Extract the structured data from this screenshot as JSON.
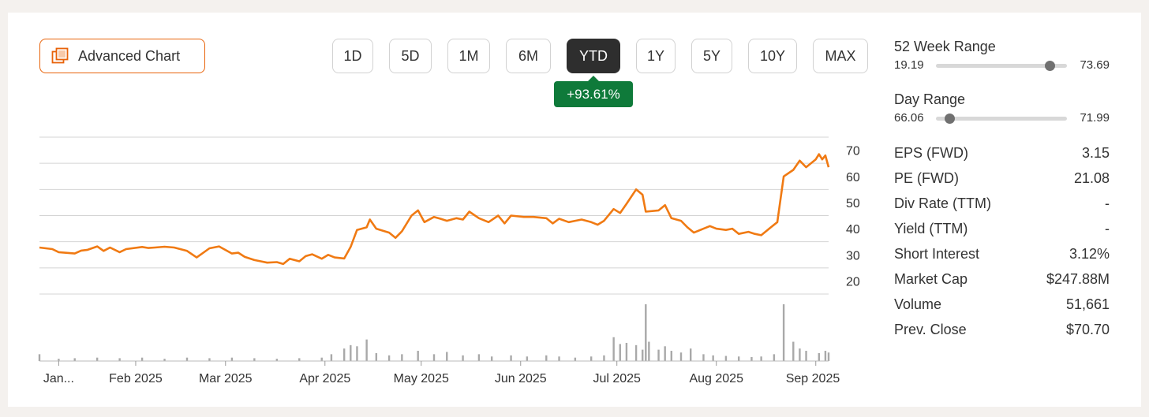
{
  "toolbar": {
    "advanced_chart_label": "Advanced Chart",
    "ranges": [
      "1D",
      "5D",
      "1M",
      "6M",
      "YTD",
      "1Y",
      "5Y",
      "10Y",
      "MAX"
    ],
    "active_range": "YTD",
    "change_label": "+93.61%"
  },
  "colors": {
    "accent": "#e8630a",
    "price_line": "#f07a13",
    "positive": "#0f7a3a",
    "volume_bar": "#a9a9a9",
    "active_button": "#2e2e2e"
  },
  "ranges_panel": {
    "week52": {
      "title": "52 Week Range",
      "low": "19.19",
      "high": "73.69",
      "position": 0.87
    },
    "day": {
      "title": "Day Range",
      "low": "66.06",
      "high": "71.99",
      "position": 0.1
    }
  },
  "stats": [
    {
      "label": "EPS (FWD)",
      "value": "3.15"
    },
    {
      "label": "PE (FWD)",
      "value": "21.08"
    },
    {
      "label": "Div Rate (TTM)",
      "value": "-"
    },
    {
      "label": "Yield (TTM)",
      "value": "-"
    },
    {
      "label": "Short Interest",
      "value": "3.12%"
    },
    {
      "label": "Market Cap",
      "value": "$247.88M"
    },
    {
      "label": "Volume",
      "value": "51,661"
    },
    {
      "label": "Prev. Close",
      "value": "$70.70"
    }
  ],
  "chart_data": {
    "type": "line",
    "title": "",
    "ylim": [
      15,
      75
    ],
    "yticks": [
      20,
      30,
      40,
      50,
      60,
      70
    ],
    "grid": true,
    "x_range": [
      "2025-01-02",
      "2025-09-05"
    ],
    "xticks": [
      {
        "label": "Jan...",
        "date": "2025-01-08"
      },
      {
        "label": "Feb 2025",
        "date": "2025-02-01"
      },
      {
        "label": "Mar 2025",
        "date": "2025-03-01"
      },
      {
        "label": "Apr 2025",
        "date": "2025-04-01"
      },
      {
        "label": "May 2025",
        "date": "2025-05-01"
      },
      {
        "label": "Jun 2025",
        "date": "2025-06-01"
      },
      {
        "label": "Jul 2025",
        "date": "2025-07-01"
      },
      {
        "label": "Aug 2025",
        "date": "2025-08-01"
      },
      {
        "label": "Sep 2025",
        "date": "2025-09-01"
      }
    ],
    "series": [
      {
        "values": [
          [
            "2025-01-02",
            32.8
          ],
          [
            "2025-01-06",
            32.2
          ],
          [
            "2025-01-08",
            31.0
          ],
          [
            "2025-01-13",
            30.5
          ],
          [
            "2025-01-15",
            31.6
          ],
          [
            "2025-01-17",
            31.9
          ],
          [
            "2025-01-20",
            33.2
          ],
          [
            "2025-01-22",
            31.5
          ],
          [
            "2025-01-24",
            32.8
          ],
          [
            "2025-01-27",
            31.0
          ],
          [
            "2025-01-29",
            32.2
          ],
          [
            "2025-02-03",
            33.0
          ],
          [
            "2025-02-05",
            32.6
          ],
          [
            "2025-02-07",
            32.8
          ],
          [
            "2025-02-10",
            33.1
          ],
          [
            "2025-02-13",
            32.8
          ],
          [
            "2025-02-17",
            31.5
          ],
          [
            "2025-02-20",
            29.0
          ],
          [
            "2025-02-24",
            32.5
          ],
          [
            "2025-02-27",
            33.2
          ],
          [
            "2025-03-03",
            30.5
          ],
          [
            "2025-03-05",
            30.8
          ],
          [
            "2025-03-07",
            29.2
          ],
          [
            "2025-03-10",
            28.0
          ],
          [
            "2025-03-12",
            27.5
          ],
          [
            "2025-03-14",
            27.0
          ],
          [
            "2025-03-17",
            27.2
          ],
          [
            "2025-03-19",
            26.5
          ],
          [
            "2025-03-21",
            28.5
          ],
          [
            "2025-03-24",
            27.5
          ],
          [
            "2025-03-26",
            29.5
          ],
          [
            "2025-03-28",
            30.2
          ],
          [
            "2025-03-31",
            28.5
          ],
          [
            "2025-04-02",
            30.0
          ],
          [
            "2025-04-04",
            29.0
          ],
          [
            "2025-04-07",
            28.6
          ],
          [
            "2025-04-09",
            33.0
          ],
          [
            "2025-04-11",
            39.5
          ],
          [
            "2025-04-14",
            40.5
          ],
          [
            "2025-04-15",
            43.5
          ],
          [
            "2025-04-17",
            40.0
          ],
          [
            "2025-04-21",
            38.5
          ],
          [
            "2025-04-23",
            36.5
          ],
          [
            "2025-04-25",
            39.0
          ],
          [
            "2025-04-28",
            45.0
          ],
          [
            "2025-04-30",
            47.0
          ],
          [
            "2025-05-02",
            42.5
          ],
          [
            "2025-05-05",
            44.5
          ],
          [
            "2025-05-07",
            43.8
          ],
          [
            "2025-05-09",
            43.0
          ],
          [
            "2025-05-12",
            44.0
          ],
          [
            "2025-05-14",
            43.5
          ],
          [
            "2025-05-16",
            46.5
          ],
          [
            "2025-05-19",
            44.0
          ],
          [
            "2025-05-22",
            42.5
          ],
          [
            "2025-05-25",
            45.0
          ],
          [
            "2025-05-27",
            42.0
          ],
          [
            "2025-05-29",
            45.0
          ],
          [
            "2025-06-02",
            44.5
          ],
          [
            "2025-06-05",
            44.5
          ],
          [
            "2025-06-09",
            44.0
          ],
          [
            "2025-06-11",
            42.0
          ],
          [
            "2025-06-13",
            43.8
          ],
          [
            "2025-06-16",
            42.5
          ],
          [
            "2025-06-18",
            43.0
          ],
          [
            "2025-06-20",
            43.5
          ],
          [
            "2025-06-23",
            42.5
          ],
          [
            "2025-06-25",
            41.5
          ],
          [
            "2025-06-27",
            43.0
          ],
          [
            "2025-06-30",
            47.5
          ],
          [
            "2025-07-02",
            46.0
          ],
          [
            "2025-07-04",
            49.5
          ],
          [
            "2025-07-07",
            55.0
          ],
          [
            "2025-07-09",
            53.0
          ],
          [
            "2025-07-10",
            46.5
          ],
          [
            "2025-07-14",
            47.0
          ],
          [
            "2025-07-16",
            49.0
          ],
          [
            "2025-07-18",
            44.0
          ],
          [
            "2025-07-21",
            43.0
          ],
          [
            "2025-07-23",
            40.5
          ],
          [
            "2025-07-25",
            38.5
          ],
          [
            "2025-07-28",
            40.0
          ],
          [
            "2025-07-30",
            41.0
          ],
          [
            "2025-08-01",
            40.0
          ],
          [
            "2025-08-04",
            39.5
          ],
          [
            "2025-08-06",
            40.0
          ],
          [
            "2025-08-08",
            38.0
          ],
          [
            "2025-08-11",
            38.8
          ],
          [
            "2025-08-13",
            38.0
          ],
          [
            "2025-08-15",
            37.5
          ],
          [
            "2025-08-18",
            40.5
          ],
          [
            "2025-08-20",
            42.5
          ],
          [
            "2025-08-22",
            60.0
          ],
          [
            "2025-08-25",
            62.5
          ],
          [
            "2025-08-27",
            66.0
          ],
          [
            "2025-08-29",
            63.5
          ],
          [
            "2025-09-01",
            66.5
          ],
          [
            "2025-09-02",
            68.5
          ],
          [
            "2025-09-03",
            66.5
          ],
          [
            "2025-09-04",
            68.0
          ],
          [
            "2025-09-05",
            63.5
          ]
        ]
      }
    ],
    "volume": [
      [
        "2025-01-02",
        0.12
      ],
      [
        "2025-01-08",
        0.04
      ],
      [
        "2025-01-13",
        0.05
      ],
      [
        "2025-01-20",
        0.06
      ],
      [
        "2025-01-27",
        0.05
      ],
      [
        "2025-02-03",
        0.06
      ],
      [
        "2025-02-10",
        0.04
      ],
      [
        "2025-02-17",
        0.06
      ],
      [
        "2025-02-24",
        0.05
      ],
      [
        "2025-03-03",
        0.06
      ],
      [
        "2025-03-10",
        0.05
      ],
      [
        "2025-03-17",
        0.04
      ],
      [
        "2025-03-24",
        0.05
      ],
      [
        "2025-03-31",
        0.06
      ],
      [
        "2025-04-03",
        0.12
      ],
      [
        "2025-04-07",
        0.22
      ],
      [
        "2025-04-09",
        0.28
      ],
      [
        "2025-04-11",
        0.26
      ],
      [
        "2025-04-14",
        0.38
      ],
      [
        "2025-04-17",
        0.14
      ],
      [
        "2025-04-21",
        0.1
      ],
      [
        "2025-04-25",
        0.12
      ],
      [
        "2025-04-30",
        0.18
      ],
      [
        "2025-05-05",
        0.12
      ],
      [
        "2025-05-09",
        0.16
      ],
      [
        "2025-05-14",
        0.1
      ],
      [
        "2025-05-19",
        0.12
      ],
      [
        "2025-05-23",
        0.08
      ],
      [
        "2025-05-29",
        0.1
      ],
      [
        "2025-06-03",
        0.08
      ],
      [
        "2025-06-09",
        0.1
      ],
      [
        "2025-06-13",
        0.08
      ],
      [
        "2025-06-18",
        0.06
      ],
      [
        "2025-06-23",
        0.08
      ],
      [
        "2025-06-27",
        0.1
      ],
      [
        "2025-06-30",
        0.42
      ],
      [
        "2025-07-02",
        0.3
      ],
      [
        "2025-07-04",
        0.32
      ],
      [
        "2025-07-07",
        0.28
      ],
      [
        "2025-07-09",
        0.2
      ],
      [
        "2025-07-10",
        1.0
      ],
      [
        "2025-07-11",
        0.34
      ],
      [
        "2025-07-14",
        0.2
      ],
      [
        "2025-07-16",
        0.26
      ],
      [
        "2025-07-18",
        0.18
      ],
      [
        "2025-07-21",
        0.15
      ],
      [
        "2025-07-24",
        0.22
      ],
      [
        "2025-07-28",
        0.12
      ],
      [
        "2025-07-31",
        0.1
      ],
      [
        "2025-08-04",
        0.09
      ],
      [
        "2025-08-08",
        0.08
      ],
      [
        "2025-08-12",
        0.07
      ],
      [
        "2025-08-15",
        0.08
      ],
      [
        "2025-08-19",
        0.12
      ],
      [
        "2025-08-22",
        1.0
      ],
      [
        "2025-08-25",
        0.34
      ],
      [
        "2025-08-27",
        0.22
      ],
      [
        "2025-08-29",
        0.18
      ],
      [
        "2025-09-02",
        0.14
      ],
      [
        "2025-09-04",
        0.18
      ],
      [
        "2025-09-05",
        0.15
      ]
    ]
  }
}
